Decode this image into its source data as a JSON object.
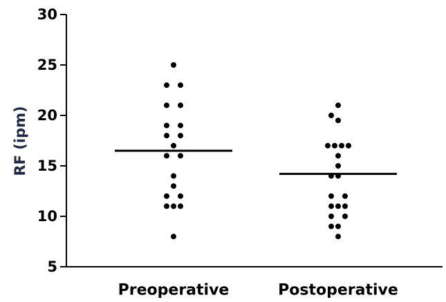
{
  "chart_data": {
    "type": "scatter",
    "title": "",
    "xlabel": "",
    "ylabel": "RF (ipm)",
    "ylabel_color": "#1f2a44",
    "ylim": [
      5,
      30
    ],
    "yticks": [
      "5",
      "10",
      "15",
      "20",
      "25",
      "30"
    ],
    "categories": [
      "Preoperative",
      "Postoperative"
    ],
    "grid": false,
    "series": [
      {
        "category": "Preoperative",
        "median": 16.5,
        "points": [
          {
            "x": 0,
            "y": 25
          },
          {
            "x": -1,
            "y": 23
          },
          {
            "x": 1,
            "y": 23
          },
          {
            "x": -1,
            "y": 21
          },
          {
            "x": 1,
            "y": 21
          },
          {
            "x": -1,
            "y": 19
          },
          {
            "x": 1,
            "y": 19
          },
          {
            "x": -1,
            "y": 18
          },
          {
            "x": 1,
            "y": 18
          },
          {
            "x": 0,
            "y": 17
          },
          {
            "x": -1,
            "y": 16
          },
          {
            "x": 1,
            "y": 16
          },
          {
            "x": 0,
            "y": 14
          },
          {
            "x": 0,
            "y": 13
          },
          {
            "x": -1,
            "y": 12
          },
          {
            "x": 1,
            "y": 12
          },
          {
            "x": -1,
            "y": 11
          },
          {
            "x": 0,
            "y": 11
          },
          {
            "x": 1,
            "y": 11
          },
          {
            "x": 0,
            "y": 8
          }
        ]
      },
      {
        "category": "Postoperative",
        "median": 14.2,
        "points": [
          {
            "x": 0,
            "y": 21
          },
          {
            "x": -1,
            "y": 20
          },
          {
            "x": 0,
            "y": 19.5
          },
          {
            "x": -1.5,
            "y": 17
          },
          {
            "x": -0.5,
            "y": 17
          },
          {
            "x": 0.5,
            "y": 17
          },
          {
            "x": 1.5,
            "y": 17
          },
          {
            "x": 0,
            "y": 16
          },
          {
            "x": 0,
            "y": 15
          },
          {
            "x": -1,
            "y": 14
          },
          {
            "x": 0,
            "y": 14
          },
          {
            "x": -1,
            "y": 12
          },
          {
            "x": 1,
            "y": 12
          },
          {
            "x": -1,
            "y": 11
          },
          {
            "x": 0,
            "y": 11
          },
          {
            "x": 1,
            "y": 11
          },
          {
            "x": -1,
            "y": 10
          },
          {
            "x": 1,
            "y": 10
          },
          {
            "x": -1,
            "y": 9
          },
          {
            "x": 0,
            "y": 9
          },
          {
            "x": 0,
            "y": 8
          }
        ]
      }
    ]
  }
}
